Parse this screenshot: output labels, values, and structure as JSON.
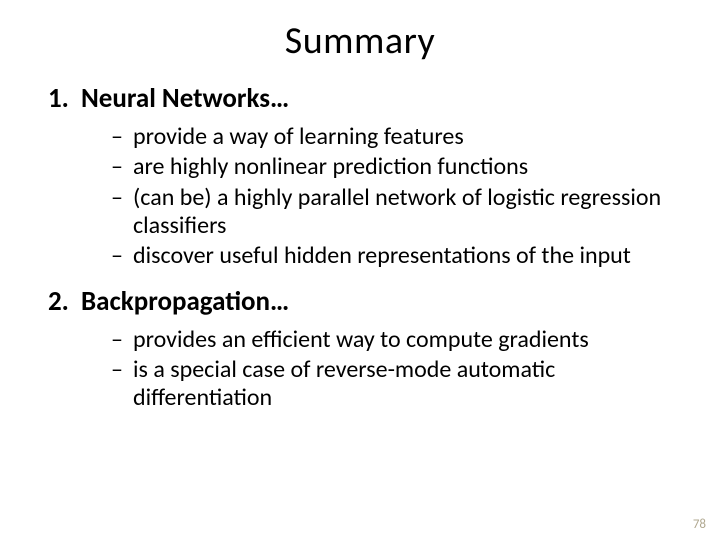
{
  "slide": {
    "title": "Summary",
    "sections": [
      {
        "heading": "Neural Networks…",
        "bullets": [
          "provide a way of learning features",
          "are highly nonlinear prediction functions",
          "(can be) a highly parallel network of logistic regression classifiers",
          "discover useful hidden representations of the input"
        ]
      },
      {
        "heading": "Backpropagation…",
        "bullets": [
          "provides an efficient way to compute gradients",
          "is a special case of reverse-mode automatic differentiation"
        ]
      }
    ],
    "page_number": "78",
    "colors": {
      "background": "#ffffff",
      "text": "#000000",
      "pagenum": "#b0a890"
    },
    "fontsizes_pt": {
      "title": 38,
      "section_heading": 27,
      "bullet": 24,
      "pagenum": 13
    }
  }
}
